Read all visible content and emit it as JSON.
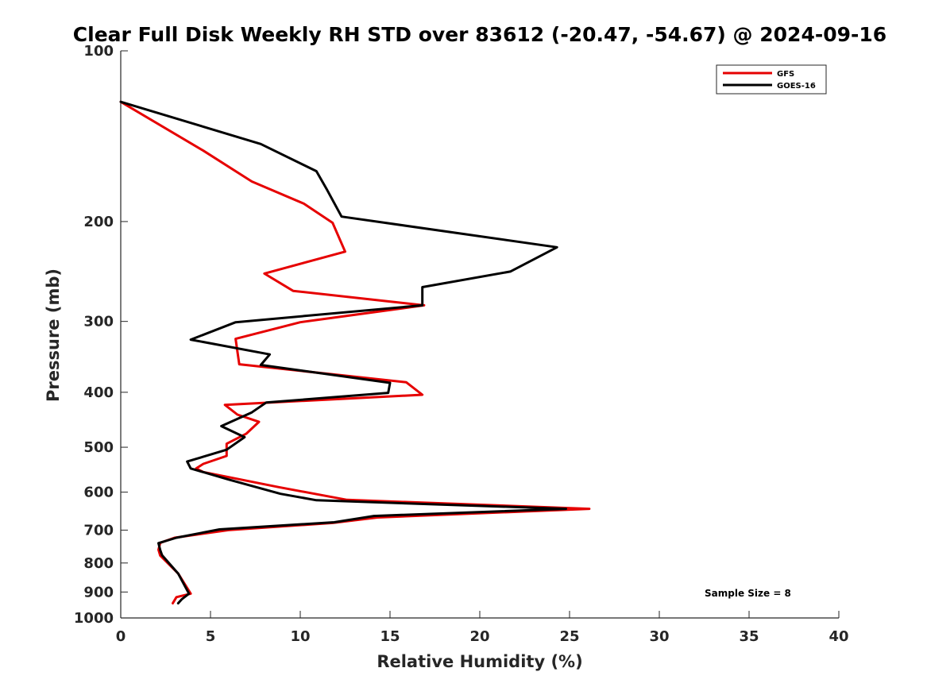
{
  "chart_data": {
    "type": "line",
    "title": "Clear Full Disk Weekly RH STD over 83612 (-20.47, -54.67) @ 2024-09-16",
    "xlabel": "Relative Humidity (%)",
    "ylabel": "Pressure (mb)",
    "xlim": [
      0,
      40
    ],
    "ylim": [
      100,
      1000
    ],
    "yscale": "log",
    "yreversed": true,
    "xticks": [
      0,
      5,
      10,
      15,
      20,
      25,
      30,
      35,
      40
    ],
    "yticks": [
      100,
      200,
      300,
      400,
      500,
      600,
      700,
      800,
      900,
      1000
    ],
    "grid": false,
    "legend_position": "top-right",
    "annotation": "Sample Size = 8",
    "series": [
      {
        "name": "GFS",
        "color": "#e60000",
        "x": [
          0,
          4.6,
          7.3,
          10.2,
          11.8,
          12.5,
          8.0,
          9.6,
          16.9,
          10.0,
          6.4,
          6.6,
          15.9,
          16.8,
          5.8,
          6.5,
          7.7,
          7.0,
          5.9,
          5.9,
          4.6,
          4.2,
          4.6,
          8.8,
          12.6,
          26.1,
          14.3,
          11.8,
          6.0,
          3.0,
          2.2,
          2.1,
          2.2,
          3.2,
          3.9,
          3.1,
          2.9
        ],
        "y": [
          123,
          150,
          170,
          186,
          201,
          226,
          247,
          265,
          281,
          301,
          322,
          357,
          384,
          404,
          421,
          438,
          451,
          473,
          493,
          518,
          535,
          545,
          553,
          588,
          619,
          642,
          665,
          680,
          700,
          722,
          737,
          758,
          776,
          835,
          906,
          919,
          942
        ]
      },
      {
        "name": "GOES-16",
        "color": "#000000",
        "x": [
          0,
          7.8,
          10.9,
          11.5,
          12.3,
          24.3,
          21.7,
          16.8,
          16.8,
          6.4,
          3.9,
          8.3,
          7.8,
          15.0,
          14.9,
          8.1,
          7.3,
          5.6,
          6.9,
          5.9,
          3.7,
          3.9,
          6.0,
          8.9,
          10.9,
          24.8,
          14.1,
          11.9,
          5.5,
          3.1,
          2.1,
          2.2,
          2.3,
          3.2,
          3.8,
          3.4,
          3.2
        ],
        "y": [
          123,
          146,
          163,
          176,
          196,
          222,
          245,
          261,
          281,
          301,
          323,
          343,
          358,
          385,
          401,
          417,
          434,
          459,
          480,
          505,
          530,
          545,
          570,
          604,
          620,
          642,
          661,
          678,
          698,
          722,
          738,
          759,
          775,
          835,
          906,
          927,
          942
        ]
      }
    ]
  }
}
